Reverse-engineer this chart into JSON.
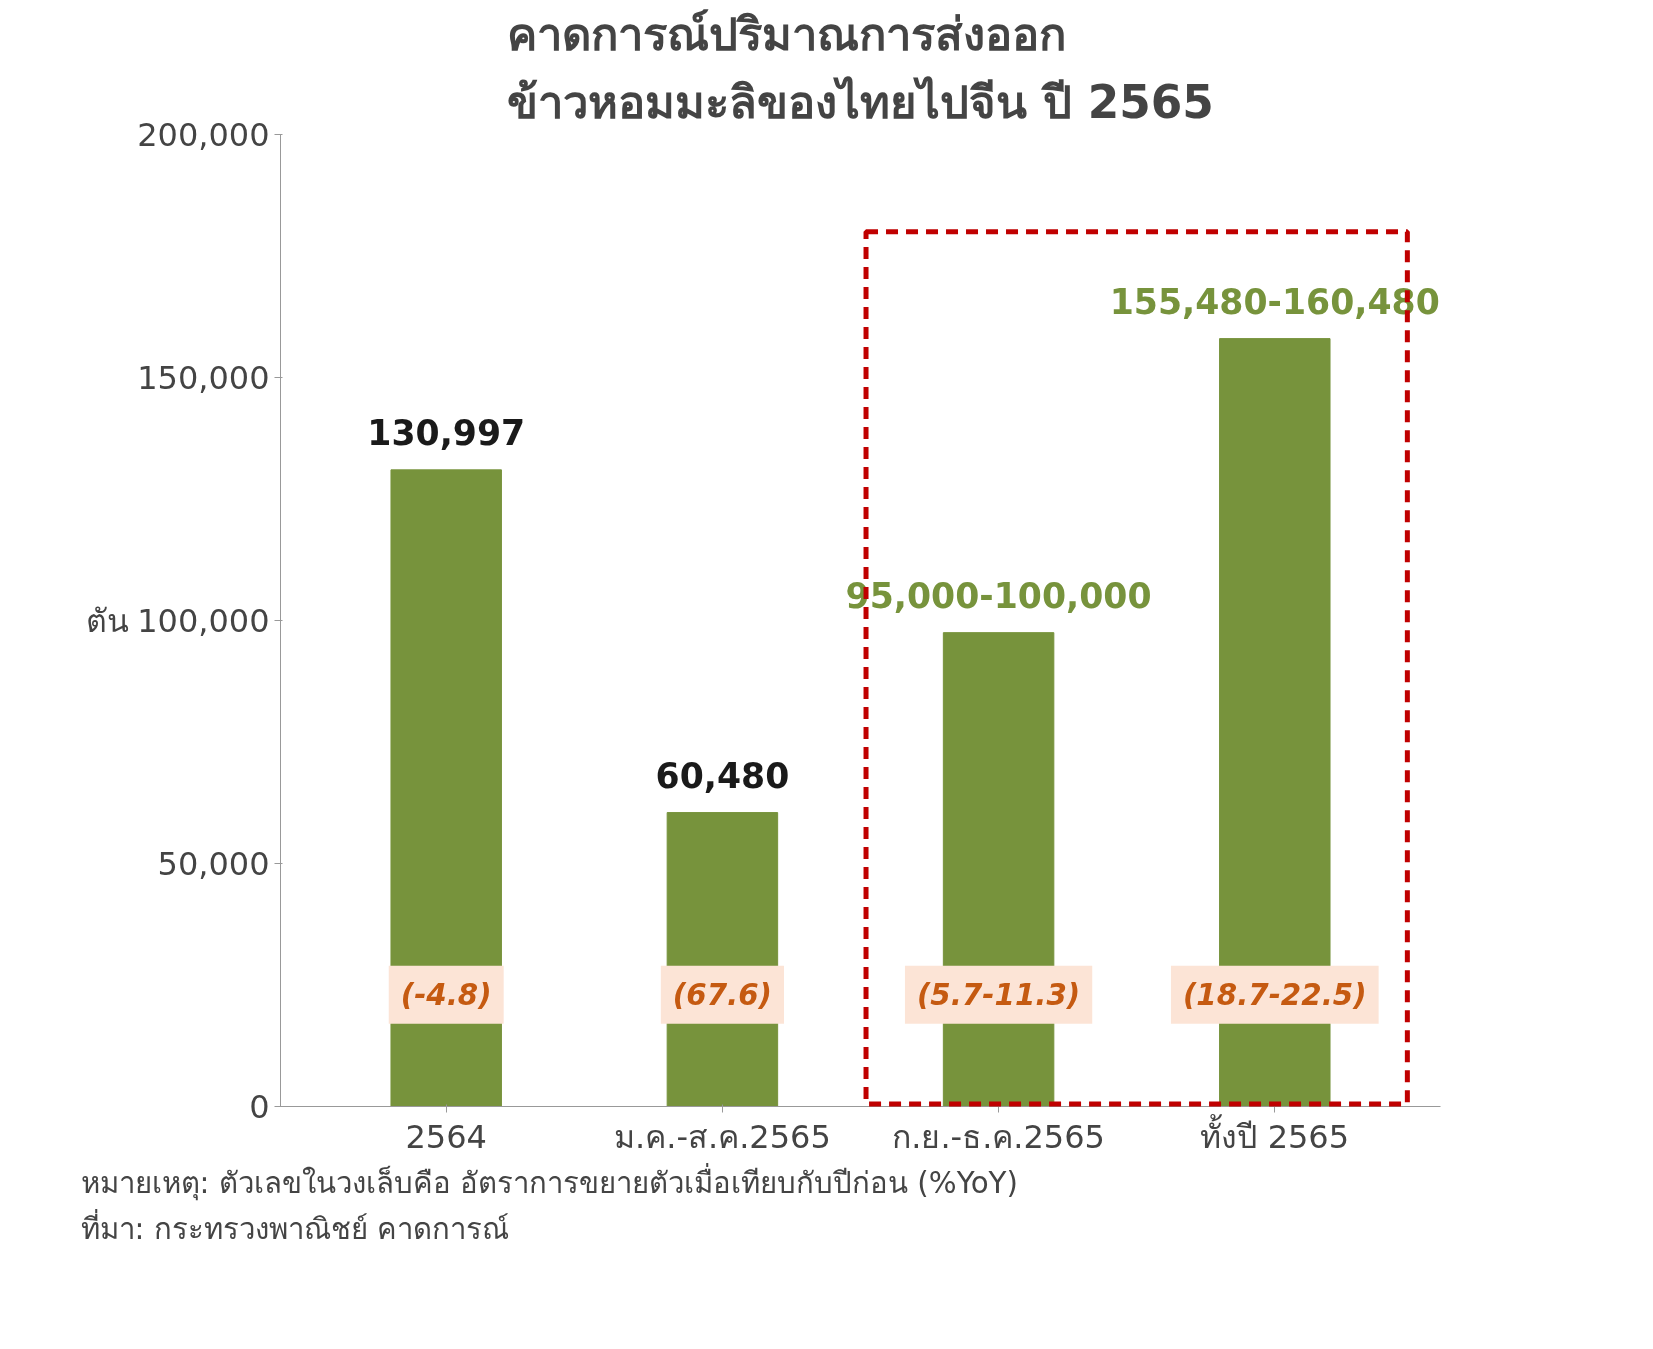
{
  "chart_data": {
    "type": "bar",
    "title": "คาดการณ์ปริมาณการส่งออก\nข้าวหอมมะลิของไทยไปจีน ปี 2565",
    "ylabel": "ตัน",
    "categories": [
      "2564",
      "ม.ค.-ส.ค.2565",
      "ก.ย.-ธ.ค.2565",
      "ทั้งปี 2565"
    ],
    "series": [
      {
        "color": "#77933c",
        "values": [
          130997,
          60480,
          97500,
          158000
        ],
        "value_labels": [
          "130,997",
          "60,480",
          "95,000-100,000",
          "155,480-160,480"
        ]
      }
    ],
    "ylim": [
      0,
      200000
    ],
    "yticks": [
      {
        "value": 0,
        "label": "0"
      },
      {
        "value": 50000,
        "label": "50,000"
      },
      {
        "value": 100000,
        "label": "100,000"
      },
      {
        "value": 150000,
        "label": "150,000"
      },
      {
        "value": 200000,
        "label": "200,000"
      }
    ],
    "grid": false,
    "annotations": [
      "(-4.8)",
      "(67.6)",
      "(5.7-11.3)",
      "(18.7-22.5)",
      "หมายเหตุ: ตัวเลขในวงเล็บคือ อัตราการขยายตัวเมื่อเทียบกับปีก่อน (%YoY)",
      "ที่มา: กระทรวงพาณิชย์ คาดการณ์"
    ]
  }
}
